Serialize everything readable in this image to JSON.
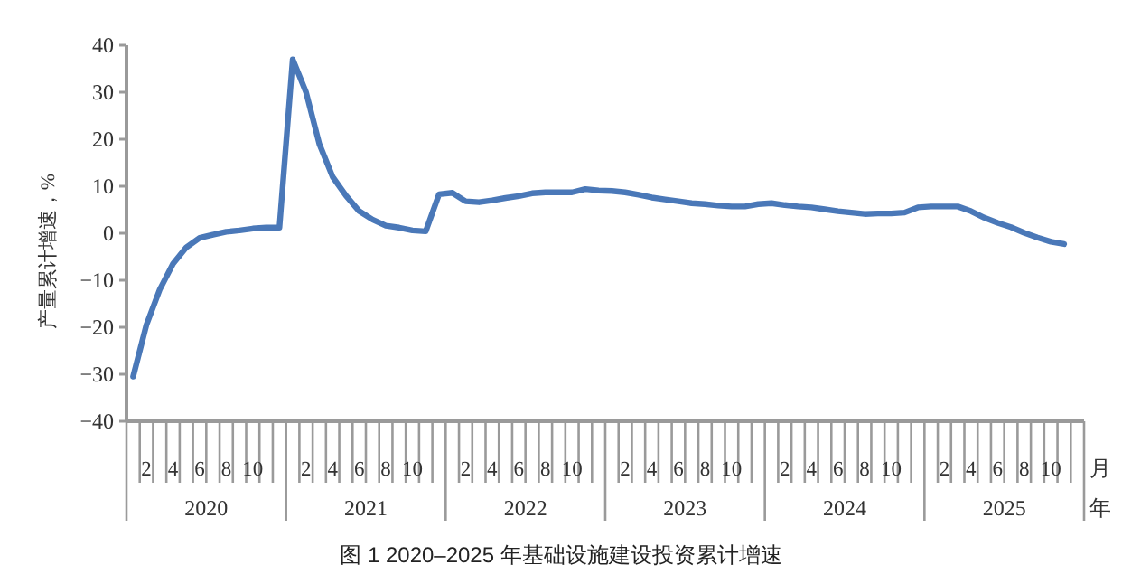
{
  "chart_data": {
    "type": "line",
    "title": "图 1  2020–2025 年基础设施建设投资累计增速",
    "ylabel": "产量累计增速，%",
    "xlabel": "月年",
    "categories": [
      null,
      "2",
      null,
      "4",
      null,
      "6",
      null,
      "8",
      null,
      "10",
      null,
      null,
      null,
      "2",
      null,
      "4",
      null,
      "6",
      null,
      "8",
      null,
      "10",
      null,
      null,
      null,
      "2",
      null,
      "4",
      null,
      "6",
      null,
      "8",
      null,
      "10",
      null,
      null,
      null,
      "2",
      null,
      "4",
      null,
      "6",
      null,
      "8",
      null,
      "10",
      null,
      null,
      null,
      "2",
      null,
      "4",
      null,
      "6",
      null,
      "8",
      null,
      "10",
      null,
      null,
      null,
      "2",
      null,
      "4",
      null,
      "6",
      null,
      "8",
      null,
      "10",
      null,
      null
    ],
    "annotations": [
      "2020",
      "2021",
      "2022",
      "2023",
      "2024",
      "2025"
    ],
    "series": [
      {
        "color": "#4a78b8",
        "values": [
          -30.5,
          -19.5,
          -12,
          -6.5,
          -3,
          -1,
          -0.3,
          0.3,
          0.6,
          1,
          1.2,
          1.2,
          37,
          30,
          19,
          12,
          8,
          4.7,
          2.9,
          1.6,
          1.2,
          0.6,
          0.4,
          8.3,
          8.6,
          6.8,
          6.6,
          7,
          7.5,
          7.9,
          8.5,
          8.7,
          8.7,
          8.7,
          9.4,
          9.1,
          9,
          8.7,
          8.2,
          7.6,
          7.2,
          6.8,
          6.4,
          6.2,
          5.9,
          5.7,
          5.7,
          6.2,
          6.4,
          6,
          5.7,
          5.5,
          5.1,
          4.7,
          4.4,
          4.1,
          4.2,
          4.2,
          4.4,
          5.5,
          5.7,
          5.7,
          5.7,
          4.7,
          3.3,
          2.2,
          1.3,
          0.1,
          -0.9,
          -1.8,
          -2.3,
          null
        ]
      }
    ],
    "ylim": [
      -40,
      40
    ],
    "yticks": [
      {
        "value": -40,
        "label": "−40"
      },
      {
        "value": -30,
        "label": "−30"
      },
      {
        "value": -20,
        "label": "−20"
      },
      {
        "value": -10,
        "label": "−10"
      },
      0,
      10,
      20,
      30,
      40
    ],
    "grid": false,
    "marker": "none",
    "line_style": "solid"
  }
}
